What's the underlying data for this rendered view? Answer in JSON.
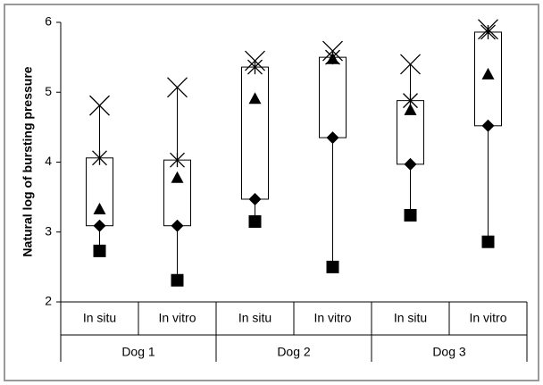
{
  "chart_data": {
    "type": "box",
    "y_label": "Natural log of bursting pressure",
    "ylim": [
      2,
      6
    ],
    "yticks": [
      2,
      3,
      4,
      5,
      6
    ],
    "groups": [
      {
        "name": "Dog 1",
        "boxes": [
          {
            "category": "In situ",
            "max": 4.81,
            "q3": 4.06,
            "mean": 3.33,
            "median": 3.09,
            "min": 2.73
          },
          {
            "category": "In vitro",
            "max": 5.07,
            "q3": 4.03,
            "mean": 3.78,
            "median": 3.09,
            "min": 2.31
          }
        ]
      },
      {
        "name": "Dog 2",
        "boxes": [
          {
            "category": "In situ",
            "max": 5.45,
            "q3": 5.36,
            "mean": 4.91,
            "median": 3.47,
            "min": 3.15
          },
          {
            "category": "In vitro",
            "max": 5.59,
            "q3": 5.5,
            "mean": 5.48,
            "median": 4.35,
            "min": 2.5
          }
        ]
      },
      {
        "name": "Dog 3",
        "boxes": [
          {
            "category": "In situ",
            "max": 5.4,
            "q3": 4.88,
            "mean": 4.75,
            "median": 3.97,
            "min": 3.24
          },
          {
            "category": "In vitro",
            "max": 5.9,
            "q3": 5.86,
            "mean": 5.26,
            "median": 4.52,
            "min": 2.86
          }
        ]
      }
    ]
  }
}
